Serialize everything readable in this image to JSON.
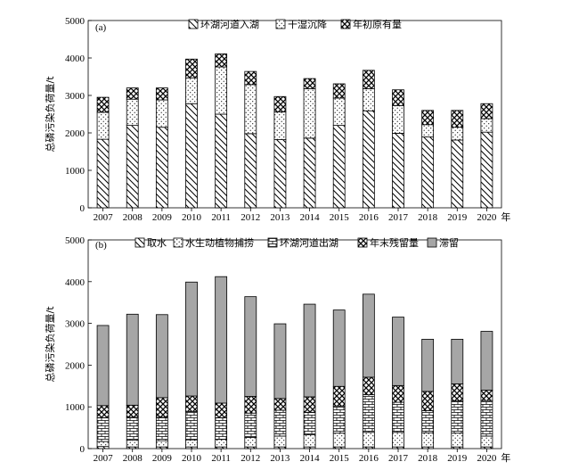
{
  "chart_data": [
    {
      "type": "bar",
      "stacked": true,
      "panel_label": "(a)",
      "ylabel": "总磷污染负荷量/t",
      "x_unit": "年",
      "categories": [
        "2007",
        "2008",
        "2009",
        "2010",
        "2011",
        "2012",
        "2013",
        "2014",
        "2015",
        "2016",
        "2017",
        "2018",
        "2019",
        "2020"
      ],
      "ylim": [
        0,
        5000
      ],
      "yticks": [
        0,
        1000,
        2000,
        3000,
        4000,
        5000
      ],
      "legend_position": "top-center",
      "series": [
        {
          "name": "环湖河道入湖",
          "pattern": "diag",
          "values": [
            1830,
            2200,
            2150,
            2780,
            2500,
            1980,
            1820,
            1860,
            2200,
            2590,
            1990,
            1890,
            1810,
            2020
          ]
        },
        {
          "name": "干湿沉降",
          "pattern": "dots",
          "values": [
            720,
            700,
            730,
            690,
            1260,
            1310,
            740,
            1320,
            730,
            590,
            740,
            330,
            340,
            360
          ]
        },
        {
          "name": "年初原有量",
          "pattern": "cross",
          "values": [
            400,
            300,
            320,
            500,
            350,
            350,
            410,
            270,
            380,
            490,
            420,
            380,
            450,
            400
          ]
        }
      ]
    },
    {
      "type": "bar",
      "stacked": true,
      "panel_label": "(b)",
      "ylabel": "总磷污染负荷量/t",
      "x_unit": "年",
      "categories": [
        "2007",
        "2008",
        "2009",
        "2010",
        "2011",
        "2012",
        "2013",
        "2014",
        "2015",
        "2016",
        "2017",
        "2018",
        "2019",
        "2020"
      ],
      "ylim": [
        0,
        5000
      ],
      "yticks": [
        0,
        1000,
        2000,
        3000,
        4000,
        5000
      ],
      "legend_position": "top-center",
      "series": [
        {
          "name": "取水",
          "pattern": "diag",
          "values": [
            50,
            40,
            40,
            40,
            40,
            40,
            40,
            40,
            40,
            40,
            40,
            40,
            40,
            40
          ]
        },
        {
          "name": "水生动植物捕捞",
          "pattern": "dots",
          "values": [
            120,
            160,
            150,
            170,
            180,
            230,
            260,
            290,
            330,
            350,
            350,
            340,
            330,
            260
          ]
        },
        {
          "name": "环湖河道出湖",
          "pattern": "bricks",
          "values": [
            570,
            550,
            560,
            680,
            520,
            580,
            620,
            540,
            650,
            900,
            720,
            530,
            770,
            850
          ]
        },
        {
          "name": "年末残留量",
          "pattern": "cross",
          "values": [
            290,
            290,
            470,
            370,
            350,
            400,
            280,
            370,
            470,
            420,
            400,
            460,
            410,
            250
          ]
        },
        {
          "name": "滞留",
          "pattern": "gray",
          "values": [
            1920,
            2180,
            1990,
            2730,
            3030,
            2390,
            1790,
            2220,
            1830,
            1990,
            1640,
            1250,
            1070,
            1410
          ]
        }
      ]
    }
  ]
}
